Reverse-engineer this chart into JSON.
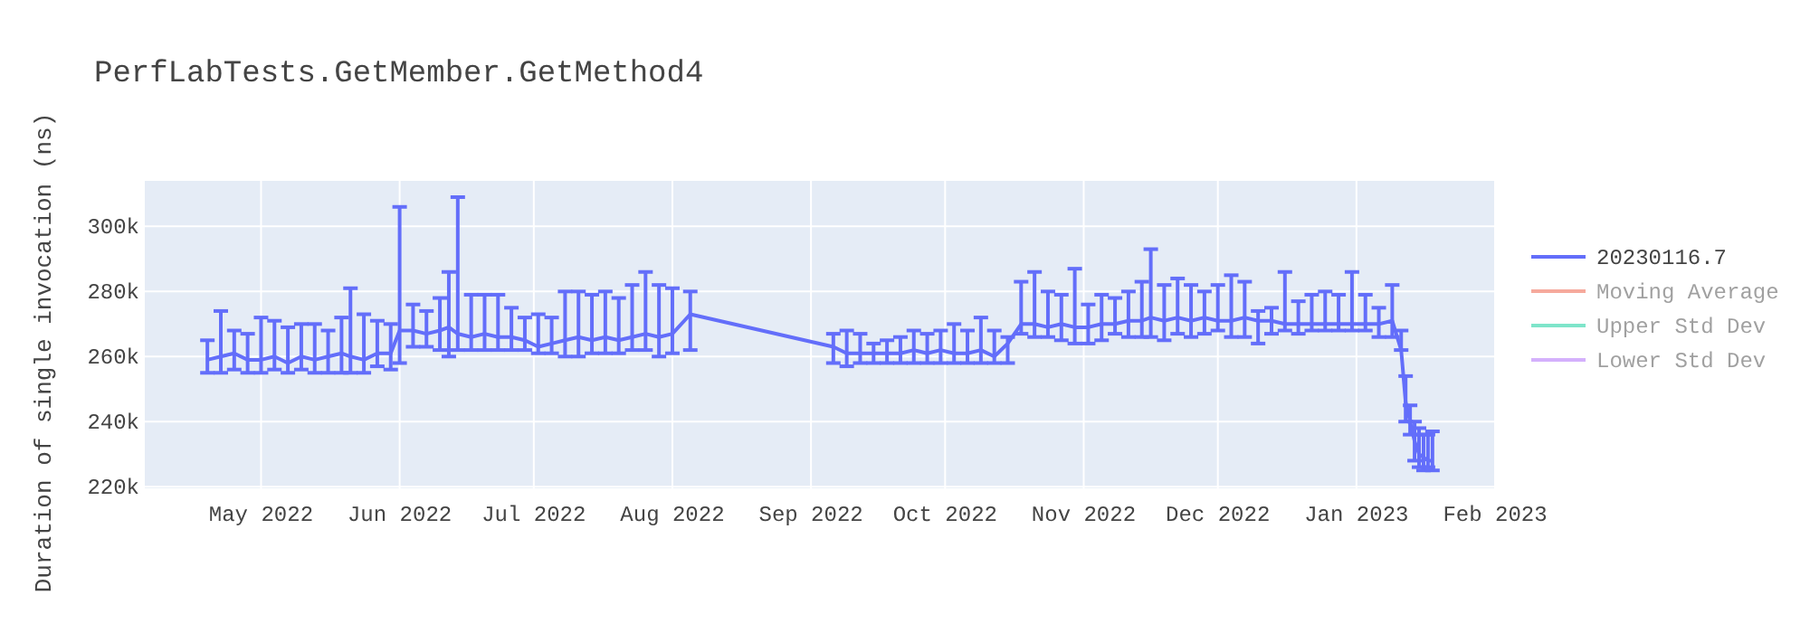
{
  "chart_data": {
    "type": "line",
    "title": "PerfLabTests.GetMember.GetMethod4",
    "ylabel": "Duration of single invocation (ns)",
    "xlim": [
      "2022-04-05",
      "2023-02-01"
    ],
    "ylim": [
      219500,
      314000
    ],
    "xticks": [
      {
        "value": "2022-05-01",
        "label": "May 2022"
      },
      {
        "value": "2022-06-01",
        "label": "Jun 2022"
      },
      {
        "value": "2022-07-01",
        "label": "Jul 2022"
      },
      {
        "value": "2022-08-01",
        "label": "Aug 2022"
      },
      {
        "value": "2022-09-01",
        "label": "Sep 2022"
      },
      {
        "value": "2022-10-01",
        "label": "Oct 2022"
      },
      {
        "value": "2022-11-01",
        "label": "Nov 2022"
      },
      {
        "value": "2022-12-01",
        "label": "Dec 2022"
      },
      {
        "value": "2023-01-01",
        "label": "Jan 2023"
      },
      {
        "value": "2023-02-01",
        "label": "Feb 2023"
      }
    ],
    "yticks": [
      {
        "value": 220000,
        "label": "220k"
      },
      {
        "value": 240000,
        "label": "240k"
      },
      {
        "value": 260000,
        "label": "260k"
      },
      {
        "value": 280000,
        "label": "280k"
      },
      {
        "value": 300000,
        "label": "300k"
      }
    ],
    "grid": true,
    "legend": "top right",
    "marker": "none",
    "series": [
      {
        "name": "20230116.7",
        "color": "#636efa",
        "x": [
          "2022-04-19",
          "2022-04-22",
          "2022-04-25",
          "2022-04-28",
          "2022-05-01",
          "2022-05-04",
          "2022-05-07",
          "2022-05-10",
          "2022-05-13",
          "2022-05-16",
          "2022-05-19",
          "2022-05-21",
          "2022-05-24",
          "2022-05-27",
          "2022-05-30",
          "2022-06-01",
          "2022-06-04",
          "2022-06-07",
          "2022-06-10",
          "2022-06-12",
          "2022-06-14",
          "2022-06-17",
          "2022-06-20",
          "2022-06-23",
          "2022-06-26",
          "2022-06-29",
          "2022-07-02",
          "2022-07-05",
          "2022-07-08",
          "2022-07-11",
          "2022-07-14",
          "2022-07-17",
          "2022-07-20",
          "2022-07-23",
          "2022-07-26",
          "2022-07-29",
          "2022-08-01",
          "2022-08-05",
          "2022-09-06",
          "2022-09-09",
          "2022-09-12",
          "2022-09-15",
          "2022-09-18",
          "2022-09-21",
          "2022-09-24",
          "2022-09-27",
          "2022-09-30",
          "2022-10-03",
          "2022-10-06",
          "2022-10-09",
          "2022-10-12",
          "2022-10-15",
          "2022-10-18",
          "2022-10-21",
          "2022-10-24",
          "2022-10-27",
          "2022-10-30",
          "2022-11-02",
          "2022-11-05",
          "2022-11-08",
          "2022-11-11",
          "2022-11-14",
          "2022-11-16",
          "2022-11-19",
          "2022-11-22",
          "2022-11-25",
          "2022-11-28",
          "2022-12-01",
          "2022-12-04",
          "2022-12-07",
          "2022-12-10",
          "2022-12-13",
          "2022-12-16",
          "2022-12-19",
          "2022-12-22",
          "2022-12-25",
          "2022-12-28",
          "2022-12-31",
          "2023-01-03",
          "2023-01-06",
          "2023-01-09",
          "2023-01-11",
          "2023-01-12",
          "2023-01-13",
          "2023-01-14",
          "2023-01-15",
          "2023-01-16",
          "2023-01-17",
          "2023-01-18"
        ],
        "values": [
          259000,
          260000,
          261000,
          259000,
          259000,
          260000,
          258000,
          260000,
          259000,
          260000,
          261000,
          260000,
          259000,
          261000,
          261000,
          268000,
          268000,
          267000,
          268000,
          269000,
          267000,
          266000,
          267000,
          266000,
          266000,
          265000,
          263000,
          264000,
          265000,
          266000,
          265000,
          266000,
          265000,
          266000,
          267000,
          266000,
          267000,
          273000,
          263000,
          261000,
          261000,
          261000,
          261000,
          261000,
          262000,
          261000,
          262000,
          261000,
          261000,
          262000,
          260000,
          264000,
          270000,
          270000,
          269000,
          270000,
          269000,
          269000,
          270000,
          270000,
          271000,
          271000,
          272000,
          271000,
          272000,
          271000,
          272000,
          271000,
          271000,
          272000,
          271000,
          271000,
          270000,
          270000,
          270000,
          270000,
          270000,
          270000,
          270000,
          270000,
          271000,
          262000,
          246000,
          240000,
          234000,
          230000,
          229000,
          228000,
          228000
        ],
        "errors": [
          [
            255000,
            265000
          ],
          [
            255000,
            274000
          ],
          [
            256000,
            268000
          ],
          [
            255000,
            267000
          ],
          [
            255000,
            272000
          ],
          [
            256000,
            271000
          ],
          [
            255000,
            269000
          ],
          [
            256000,
            270000
          ],
          [
            255000,
            270000
          ],
          [
            255000,
            268000
          ],
          [
            255000,
            272000
          ],
          [
            255000,
            281000
          ],
          [
            255000,
            273000
          ],
          [
            257000,
            271000
          ],
          [
            256000,
            270000
          ],
          [
            258000,
            306000
          ],
          [
            263000,
            276000
          ],
          [
            263000,
            274000
          ],
          [
            262000,
            278000
          ],
          [
            260000,
            286000
          ],
          [
            262000,
            309000
          ],
          [
            262000,
            279000
          ],
          [
            262000,
            279000
          ],
          [
            262000,
            279000
          ],
          [
            262000,
            275000
          ],
          [
            262000,
            272000
          ],
          [
            261000,
            273000
          ],
          [
            261000,
            272000
          ],
          [
            260000,
            280000
          ],
          [
            260000,
            280000
          ],
          [
            261000,
            279000
          ],
          [
            261000,
            280000
          ],
          [
            261000,
            278000
          ],
          [
            262000,
            282000
          ],
          [
            262000,
            286000
          ],
          [
            260000,
            282000
          ],
          [
            261000,
            281000
          ],
          [
            262000,
            280000
          ],
          [
            258000,
            267000
          ],
          [
            257000,
            268000
          ],
          [
            258000,
            267000
          ],
          [
            258000,
            264000
          ],
          [
            258000,
            265000
          ],
          [
            258000,
            266000
          ],
          [
            258000,
            268000
          ],
          [
            258000,
            267000
          ],
          [
            258000,
            268000
          ],
          [
            258000,
            270000
          ],
          [
            258000,
            268000
          ],
          [
            258000,
            272000
          ],
          [
            258000,
            268000
          ],
          [
            258000,
            266000
          ],
          [
            267000,
            283000
          ],
          [
            266000,
            286000
          ],
          [
            266000,
            280000
          ],
          [
            265000,
            279000
          ],
          [
            264000,
            287000
          ],
          [
            264000,
            276000
          ],
          [
            265000,
            279000
          ],
          [
            267000,
            278000
          ],
          [
            266000,
            280000
          ],
          [
            266000,
            283000
          ],
          [
            266000,
            293000
          ],
          [
            265000,
            282000
          ],
          [
            267000,
            284000
          ],
          [
            266000,
            282000
          ],
          [
            267000,
            280000
          ],
          [
            268000,
            282000
          ],
          [
            266000,
            285000
          ],
          [
            266000,
            283000
          ],
          [
            264000,
            274000
          ],
          [
            267000,
            275000
          ],
          [
            268000,
            286000
          ],
          [
            267000,
            277000
          ],
          [
            268000,
            279000
          ],
          [
            268000,
            280000
          ],
          [
            268000,
            279000
          ],
          [
            268000,
            286000
          ],
          [
            268000,
            279000
          ],
          [
            266000,
            275000
          ],
          [
            266000,
            282000
          ],
          [
            262000,
            268000
          ],
          [
            240000,
            254000
          ],
          [
            236000,
            245000
          ],
          [
            228000,
            240000
          ],
          [
            226000,
            238000
          ],
          [
            225000,
            236000
          ],
          [
            226000,
            236000
          ],
          [
            225000,
            237000
          ]
        ]
      },
      {
        "name": "Moving Average",
        "color": "#ef553b"
      },
      {
        "name": "Upper Std Dev",
        "color": "#00cc96"
      },
      {
        "name": "Lower Std Dev",
        "color": "#ab63fa"
      }
    ]
  }
}
